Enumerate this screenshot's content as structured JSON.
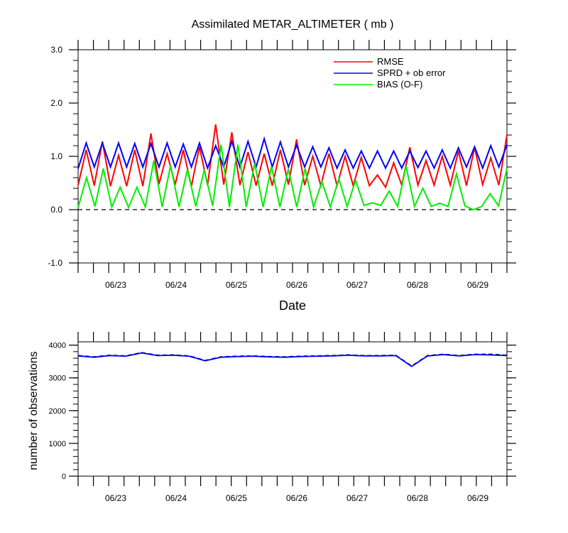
{
  "chart_data": [
    {
      "type": "line",
      "title": "Assimilated METAR_ALTIMETER ( mb )",
      "xlabel": "Date",
      "ylabel": "",
      "x_tick_labels": [
        "06/23",
        "06/24",
        "06/25",
        "06/26",
        "06/27",
        "06/28",
        "06/29"
      ],
      "yticks": [
        "-1.0",
        "0.0",
        "1.0",
        "2.0",
        "3.0"
      ],
      "ylim": [
        -1.0,
        3.0
      ],
      "grid": false,
      "legend_position": "top-right",
      "reference_line": {
        "y": 0.0,
        "style": "dashed"
      },
      "series": [
        {
          "name": "RMSE",
          "color": "#ff0000",
          "values": [
            0.46,
            1.12,
            0.45,
            1.28,
            0.44,
            1.02,
            0.44,
            1.12,
            0.44,
            1.43,
            0.48,
            1.05,
            0.47,
            1.12,
            0.44,
            1.18,
            0.46,
            1.6,
            0.47,
            1.45,
            0.46,
            1.08,
            0.45,
            1.05,
            0.45,
            1.12,
            0.47,
            1.32,
            0.46,
            1.0,
            0.45,
            1.05,
            0.45,
            1.0,
            0.45,
            0.98,
            0.45,
            0.65,
            0.42,
            0.88,
            0.46,
            1.17,
            0.46,
            0.92,
            0.46,
            1.0,
            0.46,
            1.1,
            0.45,
            1.17,
            0.47,
            0.97,
            0.46,
            1.4
          ]
        },
        {
          "name": "SPRD + ob error",
          "color": "#0000ff",
          "values": [
            0.77,
            1.25,
            0.8,
            1.25,
            0.8,
            1.25,
            0.8,
            1.24,
            0.8,
            1.24,
            0.8,
            1.25,
            0.8,
            1.23,
            0.8,
            1.25,
            0.78,
            1.2,
            0.8,
            1.28,
            0.8,
            1.28,
            0.8,
            1.33,
            0.8,
            1.27,
            0.8,
            1.21,
            0.8,
            1.18,
            0.8,
            1.16,
            0.78,
            1.12,
            0.78,
            1.1,
            0.78,
            1.1,
            0.78,
            1.1,
            0.78,
            1.1,
            0.79,
            1.1,
            0.78,
            1.12,
            0.78,
            1.16,
            0.8,
            1.18,
            0.78,
            1.2,
            0.8,
            1.22
          ]
        },
        {
          "name": "BIAS (O-F)",
          "color": "#00ee00",
          "values": [
            0.04,
            0.6,
            0.06,
            0.77,
            0.05,
            0.42,
            0.04,
            0.42,
            0.05,
            0.92,
            0.05,
            0.83,
            0.05,
            0.75,
            0.06,
            0.75,
            0.07,
            1.22,
            0.05,
            1.22,
            0.05,
            0.87,
            0.05,
            0.81,
            0.05,
            0.76,
            0.05,
            0.77,
            0.05,
            0.52,
            0.05,
            0.58,
            0.06,
            0.55,
            0.08,
            0.13,
            0.08,
            0.35,
            0.06,
            0.82,
            0.06,
            0.4,
            0.06,
            0.12,
            0.06,
            0.67,
            0.07,
            0.0,
            0.06,
            0.3,
            0.07,
            0.77
          ]
        }
      ]
    },
    {
      "type": "line",
      "title": "",
      "xlabel": "",
      "ylabel": "number of observations",
      "x_tick_labels": [
        "06/23",
        "06/24",
        "06/25",
        "06/26",
        "06/27",
        "06/28",
        "06/29"
      ],
      "yticks": [
        "0",
        "1000",
        "2000",
        "3000",
        "4000"
      ],
      "ylim": [
        0,
        4100
      ],
      "grid": false,
      "series": [
        {
          "name": "",
          "color": "#000000",
          "style": "dashed",
          "values": [
            3680,
            3640,
            3690,
            3670,
            3770,
            3690,
            3700,
            3670,
            3530,
            3640,
            3660,
            3670,
            3650,
            3640,
            3660,
            3670,
            3680,
            3700,
            3680,
            3680,
            3690,
            3360,
            3680,
            3720,
            3680,
            3720,
            3720,
            3690
          ]
        },
        {
          "name": "",
          "color": "#0000ff",
          "style": "solid",
          "values": [
            3670,
            3630,
            3680,
            3660,
            3760,
            3680,
            3690,
            3660,
            3520,
            3630,
            3650,
            3660,
            3640,
            3630,
            3650,
            3660,
            3670,
            3690,
            3670,
            3670,
            3680,
            3350,
            3670,
            3710,
            3670,
            3710,
            3700,
            3680
          ]
        }
      ]
    }
  ]
}
